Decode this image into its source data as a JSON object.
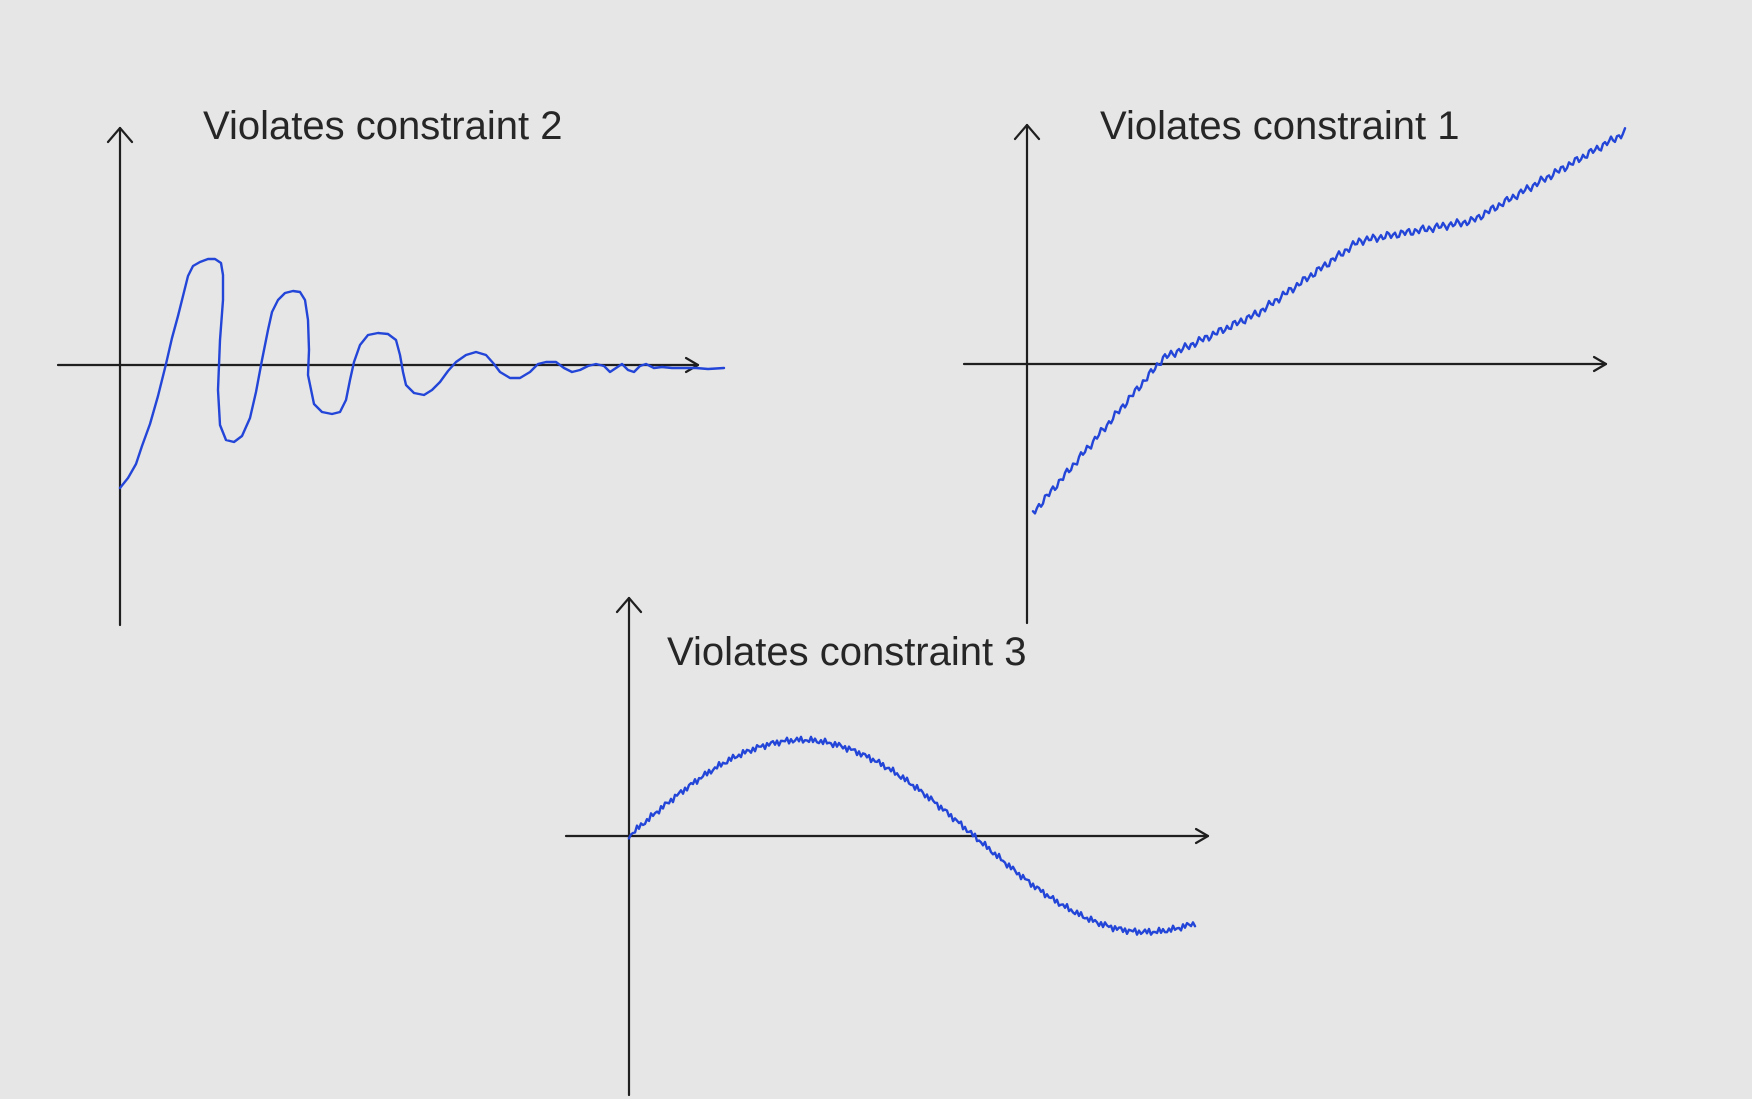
{
  "panels": [
    {
      "title": "Violates constraint 2",
      "curve_shape": "decaying-oscillation-with-discontinuities"
    },
    {
      "title": "Violates constraint 1",
      "curve_shape": "noisy-rising-curve"
    },
    {
      "title": "Violates constraint 3",
      "curve_shape": "noisy-sine-wave"
    }
  ],
  "colors": {
    "background": "#e6e6e6",
    "axes": "#1f1f1f",
    "curve": "#2345d8",
    "title_text": "#262626"
  }
}
